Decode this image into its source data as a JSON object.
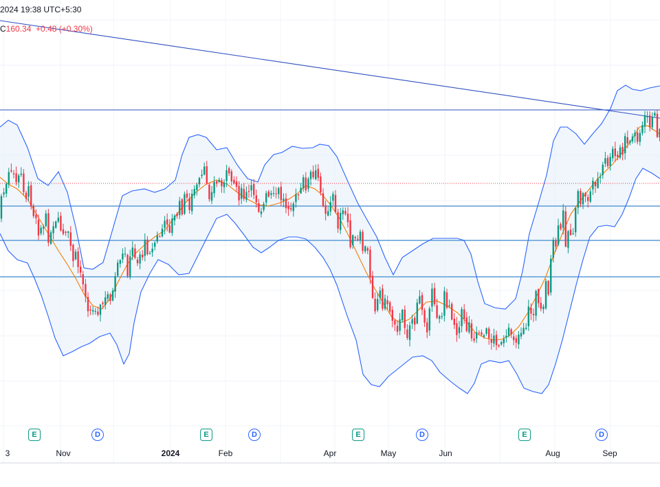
{
  "header": {
    "datetime": "2024 19:38 UTC+5:30",
    "close_label": "C",
    "close_value": "160.34",
    "change": "+0.48",
    "change_pct": "(+0.30%)"
  },
  "chart_data": {
    "type": "candlestick",
    "indicators": [
      "Bollinger Bands",
      "SMA basis (orange)"
    ],
    "colors": {
      "up": "#089981",
      "down": "#f23645",
      "band": "#2962ff",
      "basis": "#f57c00",
      "fill": "#e3effa",
      "hline": "#5b9bd5"
    },
    "horizontal_levels_note": "4 horizontal lines + 1 descending trendline + dotted last price line",
    "x_labels": [
      {
        "label": "3",
        "year": false
      },
      {
        "label": "Nov",
        "year": false
      },
      {
        "label": "2024",
        "year": true
      },
      {
        "label": "Feb",
        "year": false
      },
      {
        "label": "Apr",
        "year": false
      },
      {
        "label": "May",
        "year": false
      },
      {
        "label": "Jun",
        "year": false
      },
      {
        "label": "Aug",
        "year": false
      },
      {
        "label": "Sep",
        "year": false
      }
    ],
    "events": [
      {
        "type": "E",
        "text": "E"
      },
      {
        "type": "D",
        "text": "D"
      },
      {
        "type": "E",
        "text": "E"
      },
      {
        "type": "D",
        "text": "D"
      },
      {
        "type": "E",
        "text": "E"
      },
      {
        "type": "D",
        "text": "D"
      },
      {
        "type": "E",
        "text": "E"
      },
      {
        "type": "D",
        "text": "D"
      }
    ]
  }
}
